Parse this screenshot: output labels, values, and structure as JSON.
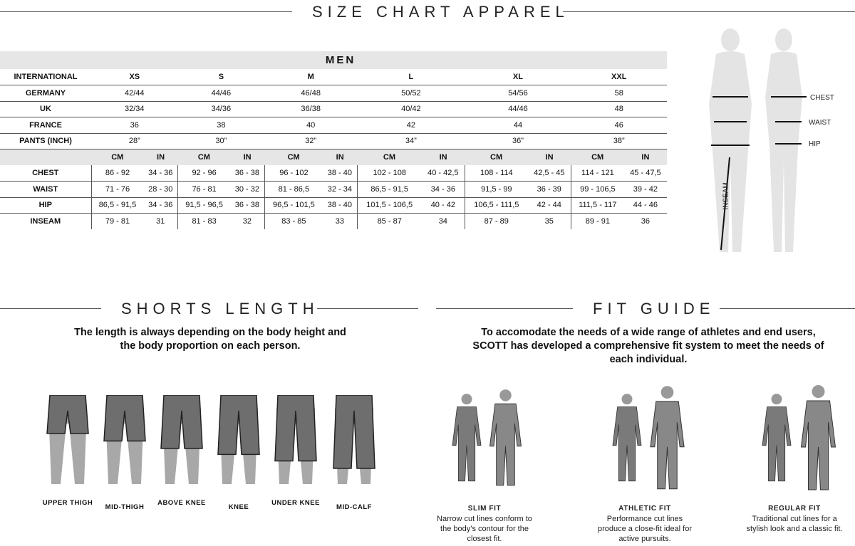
{
  "title": "SIZE CHART APPAREL",
  "men": {
    "heading": "MEN",
    "size_rows": [
      {
        "label": "INTERNATIONAL",
        "values": [
          "XS",
          "S",
          "M",
          "L",
          "XL",
          "XXL"
        ]
      },
      {
        "label": "GERMANY",
        "values": [
          "42/44",
          "44/46",
          "46/48",
          "50/52",
          "54/56",
          "58"
        ]
      },
      {
        "label": "UK",
        "values": [
          "32/34",
          "34/36",
          "36/38",
          "40/42",
          "44/46",
          "48"
        ]
      },
      {
        "label": "FRANCE",
        "values": [
          "36",
          "38",
          "40",
          "42",
          "44",
          "46"
        ]
      },
      {
        "label": "PANTS (INCH)",
        "values": [
          "28”",
          "30”",
          "32”",
          "34”",
          "36”",
          "38”"
        ]
      }
    ],
    "unit_headers": [
      "CM",
      "IN"
    ],
    "measure_rows": [
      {
        "label": "CHEST",
        "values": [
          "86 - 92",
          "34 - 36",
          "92 - 96",
          "36 - 38",
          "96 - 102",
          "38 - 40",
          "102 - 108",
          "40 - 42,5",
          "108 - 114",
          "42,5 - 45",
          "114 - 121",
          "45 - 47,5"
        ]
      },
      {
        "label": "WAIST",
        "values": [
          "71 - 76",
          "28 - 30",
          "76 - 81",
          "30 - 32",
          "81 - 86,5",
          "32 - 34",
          "86,5 - 91,5",
          "34 - 36",
          "91,5 - 99",
          "36 - 39",
          "99 - 106,5",
          "39 - 42"
        ]
      },
      {
        "label": "HIP",
        "values": [
          "86,5 - 91,5",
          "34 - 36",
          "91,5 - 96,5",
          "36 - 38",
          "96,5 - 101,5",
          "38 - 40",
          "101,5 - 106,5",
          "40 - 42",
          "106,5 - 111,5",
          "42 - 44",
          "111,5 - 117",
          "44 - 46"
        ]
      },
      {
        "label": "INSEAM",
        "values": [
          "79 - 81",
          "31",
          "81 - 83",
          "32",
          "83 - 85",
          "33",
          "85 - 87",
          "34",
          "87 - 89",
          "35",
          "89 - 91",
          "36"
        ]
      }
    ]
  },
  "body_diagram": {
    "chest": "CHEST",
    "waist": "WAIST",
    "hip": "HIP",
    "inseam": "INSEAM"
  },
  "shorts": {
    "title": "SHORTS LENGTH",
    "text": "The length is always depending on the body height and the body proportion on each person.",
    "items": [
      {
        "label": "UPPER THIGH",
        "length": 0.2
      },
      {
        "label": "MID-THIGH",
        "length": 0.35
      },
      {
        "label": "ABOVE KNEE",
        "length": 0.5
      },
      {
        "label": "KNEE",
        "length": 0.62
      },
      {
        "label": "UNDER KNEE",
        "length": 0.75
      },
      {
        "label": "MID-CALF",
        "length": 0.9
      }
    ]
  },
  "fit": {
    "title": "FIT GUIDE",
    "text": "To accomodate the needs of a wide range of athletes and end users, SCOTT has developed a comprehensive fit system to meet the needs of each individual.",
    "items": [
      {
        "title": "SLIM FIT",
        "desc": "Narrow cut lines conform to the body’s contour for the closest fit."
      },
      {
        "title": "ATHLETIC FIT",
        "desc": "Performance cut lines produce a close-fit ideal for active pursuits."
      },
      {
        "title": "REGULAR FIT",
        "desc": "Traditional cut lines for a stylish look and a classic fit."
      }
    ]
  },
  "colors": {
    "header_gray": "#e6e6e6",
    "figure_gray": "#6e6e6e",
    "skin_gray": "#a8a8a8"
  }
}
